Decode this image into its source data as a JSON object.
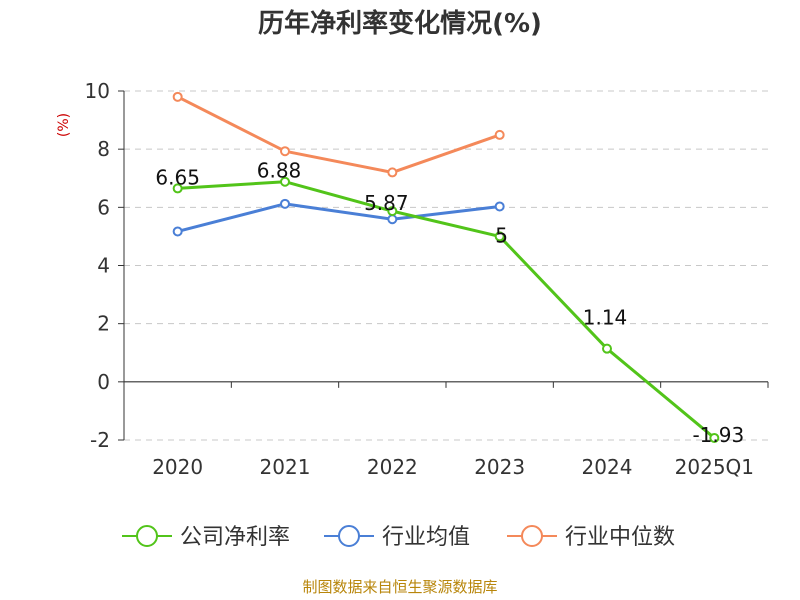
{
  "chart_data": {
    "type": "line",
    "title": "历年净利率变化情况(%)",
    "ylabel": "(%)",
    "categories": [
      "2020",
      "2021",
      "2022",
      "2023",
      "2024",
      "2025Q1"
    ],
    "ylim": [
      -2,
      10
    ],
    "yticks": [
      -2,
      0,
      2,
      4,
      6,
      8,
      10
    ],
    "grid": true,
    "legend_position": "bottom",
    "series": [
      {
        "name": "公司净利率",
        "color": "#52c41a",
        "values": [
          6.65,
          6.88,
          5.87,
          5,
          1.14,
          -1.93
        ],
        "labels": [
          "6.65",
          "6.88",
          "5.87",
          "5",
          "1.14",
          "-1.93"
        ]
      },
      {
        "name": "行业均值",
        "color": "#4a7fd6",
        "values": [
          5.17,
          6.12,
          5.59,
          6.03,
          null,
          null
        ]
      },
      {
        "name": "行业中位数",
        "color": "#f4895a",
        "values": [
          9.8,
          7.93,
          7.2,
          8.49,
          null,
          null
        ]
      }
    ]
  },
  "source": "制图数据来自恒生聚源数据库"
}
